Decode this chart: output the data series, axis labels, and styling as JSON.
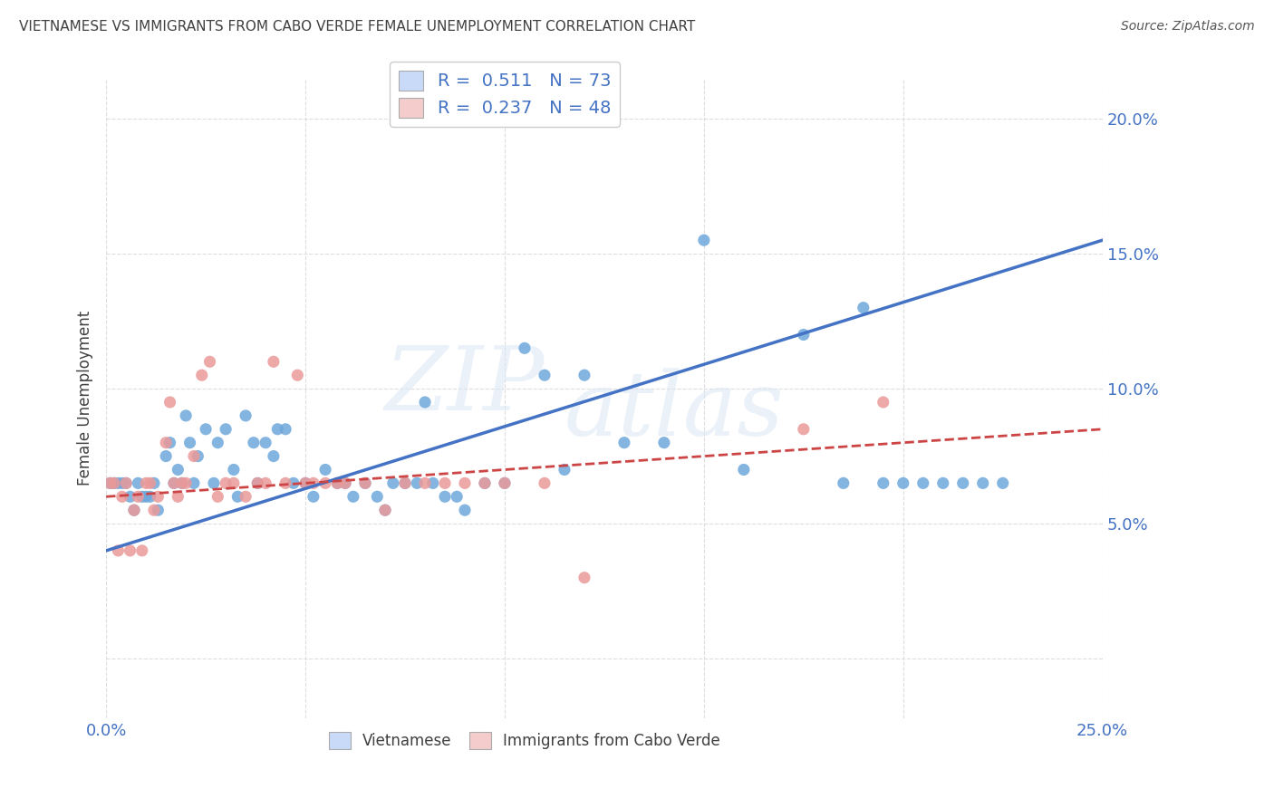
{
  "title": "VIETNAMESE VS IMMIGRANTS FROM CABO VERDE FEMALE UNEMPLOYMENT CORRELATION CHART",
  "source": "Source: ZipAtlas.com",
  "ylabel": "Female Unemployment",
  "watermark_top": "ZIP",
  "watermark_bot": "atlas",
  "blue_R": 0.511,
  "blue_N": 73,
  "pink_R": 0.237,
  "pink_N": 48,
  "blue_color": "#6fa8dc",
  "pink_color": "#ea9999",
  "blue_line_color": "#4472c4",
  "pink_line_color": "#cc4444",
  "axis_color": "#4472c4",
  "title_color": "#404040",
  "xmin": 0.0,
  "xmax": 0.25,
  "ymin": -0.022,
  "ymax": 0.215,
  "yticks": [
    0.0,
    0.05,
    0.1,
    0.15,
    0.2
  ],
  "ytick_labels": [
    "",
    "5.0%",
    "10.0%",
    "15.0%",
    "20.0%"
  ],
  "xticks": [
    0.0,
    0.05,
    0.1,
    0.15,
    0.2,
    0.25
  ],
  "xtick_labels": [
    "0.0%",
    "",
    "",
    "",
    "",
    "25.0%"
  ],
  "blue_scatter_x": [
    0.001,
    0.002,
    0.003,
    0.004,
    0.005,
    0.006,
    0.007,
    0.008,
    0.009,
    0.01,
    0.011,
    0.012,
    0.013,
    0.015,
    0.016,
    0.017,
    0.018,
    0.019,
    0.02,
    0.021,
    0.022,
    0.023,
    0.025,
    0.027,
    0.028,
    0.03,
    0.032,
    0.033,
    0.035,
    0.037,
    0.038,
    0.04,
    0.042,
    0.043,
    0.045,
    0.047,
    0.05,
    0.052,
    0.055,
    0.058,
    0.06,
    0.062,
    0.065,
    0.068,
    0.07,
    0.072,
    0.075,
    0.078,
    0.08,
    0.082,
    0.085,
    0.088,
    0.09,
    0.095,
    0.1,
    0.105,
    0.11,
    0.115,
    0.12,
    0.13,
    0.14,
    0.15,
    0.16,
    0.175,
    0.185,
    0.19,
    0.195,
    0.2,
    0.205,
    0.21,
    0.215,
    0.22,
    0.225
  ],
  "blue_scatter_y": [
    0.065,
    0.065,
    0.065,
    0.065,
    0.065,
    0.06,
    0.055,
    0.065,
    0.06,
    0.06,
    0.06,
    0.065,
    0.055,
    0.075,
    0.08,
    0.065,
    0.07,
    0.065,
    0.09,
    0.08,
    0.065,
    0.075,
    0.085,
    0.065,
    0.08,
    0.085,
    0.07,
    0.06,
    0.09,
    0.08,
    0.065,
    0.08,
    0.075,
    0.085,
    0.085,
    0.065,
    0.065,
    0.06,
    0.07,
    0.065,
    0.065,
    0.06,
    0.065,
    0.06,
    0.055,
    0.065,
    0.065,
    0.065,
    0.095,
    0.065,
    0.06,
    0.06,
    0.055,
    0.065,
    0.065,
    0.115,
    0.105,
    0.07,
    0.105,
    0.08,
    0.08,
    0.155,
    0.07,
    0.12,
    0.065,
    0.13,
    0.065,
    0.065,
    0.065,
    0.065,
    0.065,
    0.065,
    0.065
  ],
  "pink_scatter_x": [
    0.001,
    0.002,
    0.003,
    0.004,
    0.005,
    0.006,
    0.007,
    0.008,
    0.009,
    0.01,
    0.011,
    0.012,
    0.013,
    0.015,
    0.016,
    0.017,
    0.018,
    0.019,
    0.02,
    0.022,
    0.024,
    0.026,
    0.028,
    0.03,
    0.032,
    0.035,
    0.038,
    0.04,
    0.042,
    0.045,
    0.048,
    0.05,
    0.052,
    0.055,
    0.058,
    0.06,
    0.065,
    0.07,
    0.075,
    0.08,
    0.085,
    0.09,
    0.095,
    0.1,
    0.11,
    0.12,
    0.175,
    0.195
  ],
  "pink_scatter_y": [
    0.065,
    0.065,
    0.04,
    0.06,
    0.065,
    0.04,
    0.055,
    0.06,
    0.04,
    0.065,
    0.065,
    0.055,
    0.06,
    0.08,
    0.095,
    0.065,
    0.06,
    0.065,
    0.065,
    0.075,
    0.105,
    0.11,
    0.06,
    0.065,
    0.065,
    0.06,
    0.065,
    0.065,
    0.11,
    0.065,
    0.105,
    0.065,
    0.065,
    0.065,
    0.065,
    0.065,
    0.065,
    0.055,
    0.065,
    0.065,
    0.065,
    0.065,
    0.065,
    0.065,
    0.065,
    0.03,
    0.085,
    0.095
  ],
  "blue_line_x": [
    0.0,
    0.25
  ],
  "blue_line_y": [
    0.04,
    0.155
  ],
  "pink_line_x": [
    0.0,
    0.25
  ],
  "pink_line_y": [
    0.06,
    0.085
  ],
  "background_color": "#ffffff",
  "grid_color": "#dddddd",
  "legend_color_blue": "#c9daf8",
  "legend_color_pink": "#f4cccc"
}
